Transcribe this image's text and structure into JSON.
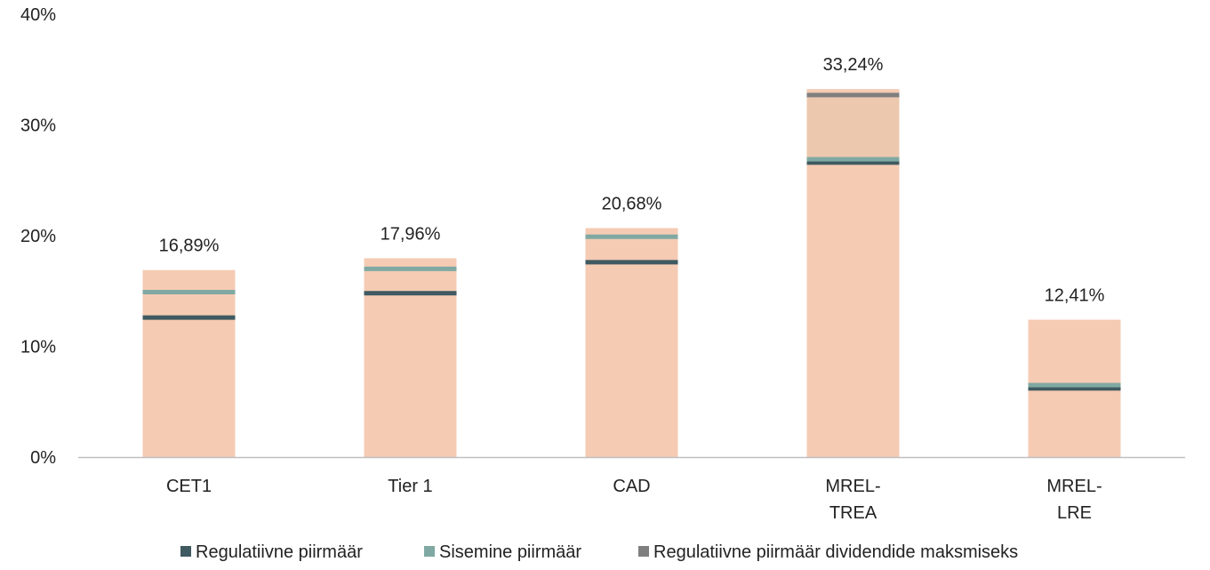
{
  "chart_data": {
    "type": "bar",
    "categories": [
      [
        "CET1"
      ],
      [
        "Tier 1"
      ],
      [
        "CAD"
      ],
      [
        "MREL-",
        "TREA"
      ],
      [
        "MREL-",
        "LRE"
      ]
    ],
    "values": [
      16.89,
      17.96,
      20.68,
      33.24,
      12.41
    ],
    "value_labels": [
      "16,89%",
      "17,96%",
      "20,68%",
      "33,24%",
      "12,41%"
    ],
    "ylim": [
      0,
      40
    ],
    "yticks": [
      0,
      10,
      20,
      30,
      40
    ],
    "ytick_labels": [
      "0%",
      "10%",
      "20%",
      "30%",
      "40%"
    ],
    "grid": false,
    "bar_color": "#f5cbb4",
    "highlight_band": {
      "category_index": 3,
      "from": 27.0,
      "to": 32.7,
      "color": "#ecc8ae"
    },
    "series": [
      {
        "name": "Regulatiivne piirmäär",
        "color": "#3f5a60",
        "values": [
          12.6,
          14.8,
          17.6,
          26.6,
          6.2
        ]
      },
      {
        "name": "Sisemine piirmäär",
        "color": "#7fa9a2",
        "values": [
          14.9,
          17.0,
          19.9,
          26.9,
          6.5
        ]
      },
      {
        "name": "Regulatiivne piirmäär dividendide maksmiseks",
        "color": "#7f7f7f",
        "values": [
          null,
          null,
          null,
          32.7,
          null
        ]
      }
    ],
    "legend_position": "bottom"
  }
}
